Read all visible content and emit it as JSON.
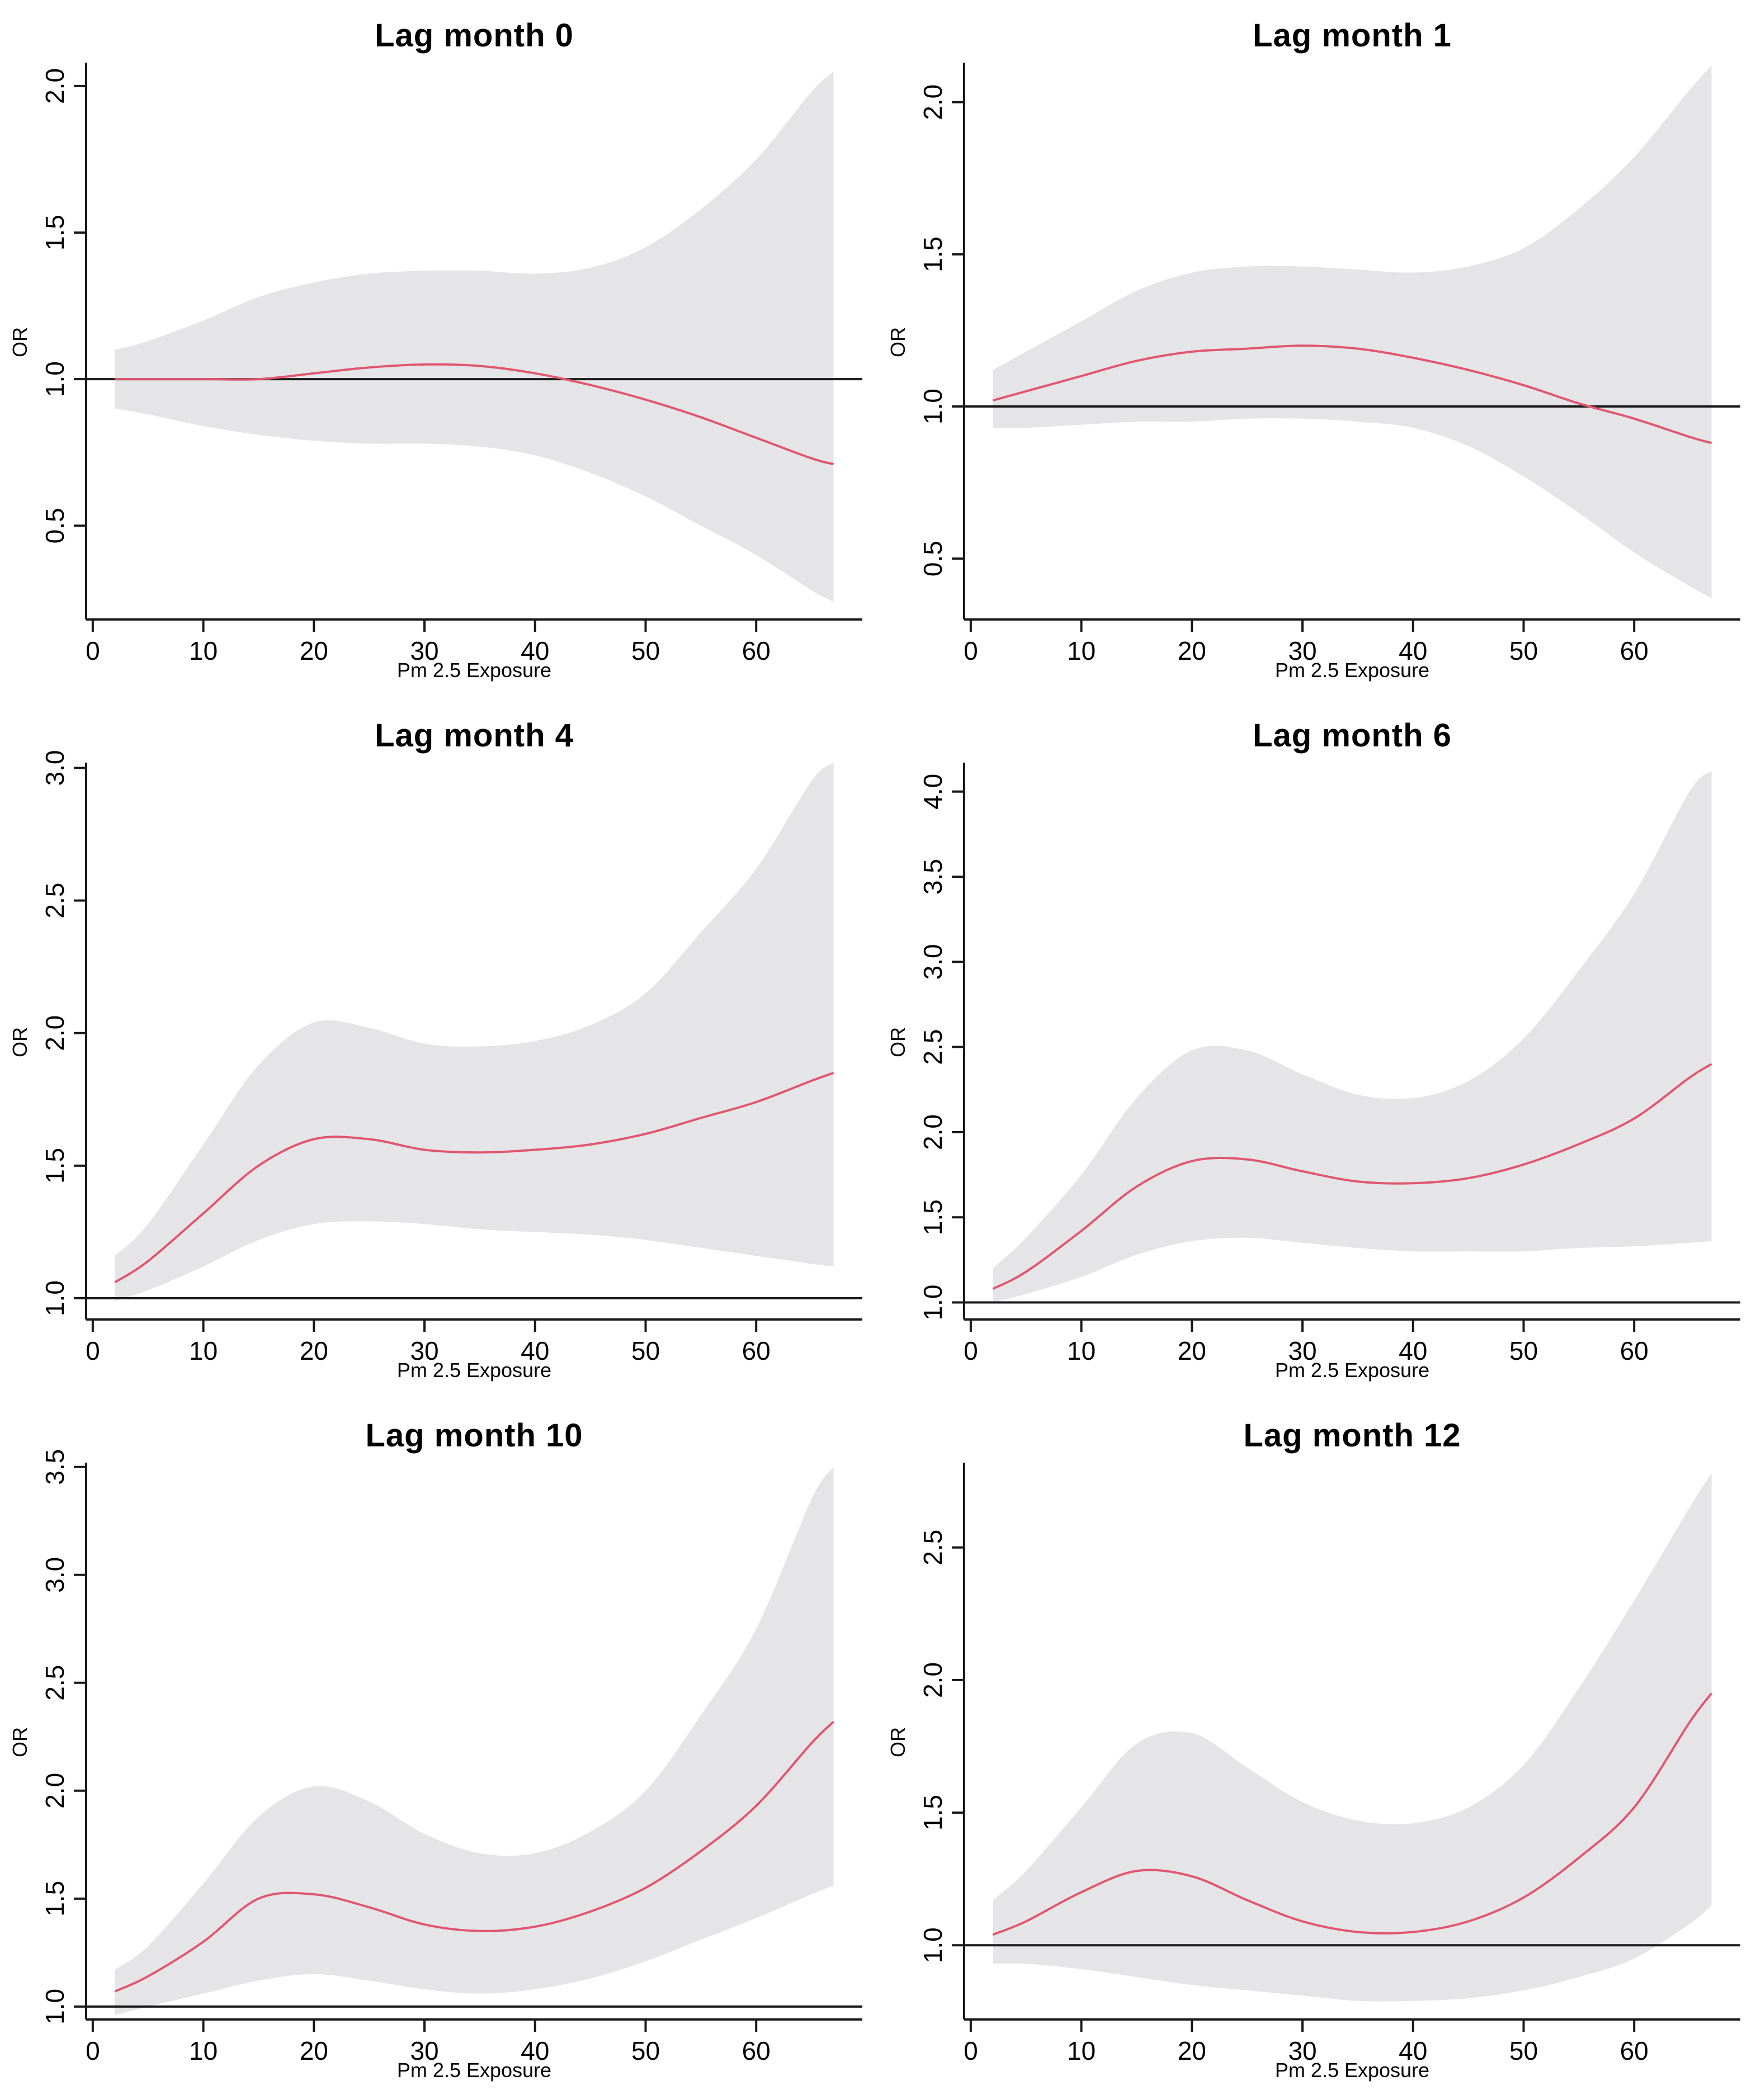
{
  "figure": {
    "xlabel": "Pm 2.5 Exposure",
    "ylabel": "OR",
    "x_ticks": [
      0,
      10,
      20,
      30,
      40,
      50,
      60
    ],
    "xlim": [
      -0.6,
      69.6
    ],
    "reference_line": 1.0
  },
  "colors": {
    "band": "#e5e4e7",
    "line": "#e0566f",
    "axis": "#191919",
    "reference_line": "#191919",
    "background": "#ffffff",
    "text": "#000000"
  },
  "chart_data": [
    {
      "type": "line",
      "title": "Lag month 0",
      "xlabel": "Pm 2.5 Exposure",
      "ylabel": "OR",
      "ylim": [
        0.18,
        2.08
      ],
      "y_ticks": [
        0.5,
        1.0,
        1.5,
        2.0
      ],
      "ref_line": 1.0,
      "x": [
        2,
        5,
        10,
        15,
        20,
        25,
        30,
        35,
        40,
        45,
        50,
        55,
        60,
        65,
        67
      ],
      "fit": [
        1.0,
        1.0,
        1.0,
        1.0,
        1.02,
        1.04,
        1.05,
        1.045,
        1.02,
        0.98,
        0.93,
        0.87,
        0.8,
        0.73,
        0.71
      ],
      "ci_upper": [
        1.1,
        1.13,
        1.2,
        1.28,
        1.33,
        1.36,
        1.37,
        1.37,
        1.36,
        1.38,
        1.45,
        1.58,
        1.75,
        1.98,
        2.05
      ],
      "ci_lower": [
        0.9,
        0.88,
        0.84,
        0.81,
        0.79,
        0.78,
        0.78,
        0.77,
        0.74,
        0.68,
        0.6,
        0.5,
        0.4,
        0.28,
        0.24
      ]
    },
    {
      "type": "line",
      "title": "Lag month 1",
      "xlabel": "Pm 2.5 Exposure",
      "ylabel": "OR",
      "ylim": [
        0.3,
        2.13
      ],
      "y_ticks": [
        0.5,
        1.0,
        1.5,
        2.0
      ],
      "ref_line": 1.0,
      "x": [
        2,
        5,
        10,
        15,
        20,
        25,
        30,
        35,
        40,
        45,
        50,
        55,
        60,
        65,
        67
      ],
      "fit": [
        1.02,
        1.05,
        1.1,
        1.15,
        1.18,
        1.19,
        1.2,
        1.19,
        1.16,
        1.12,
        1.07,
        1.01,
        0.96,
        0.9,
        0.88
      ],
      "ci_upper": [
        1.12,
        1.18,
        1.28,
        1.38,
        1.44,
        1.46,
        1.46,
        1.45,
        1.44,
        1.46,
        1.52,
        1.65,
        1.82,
        2.04,
        2.12
      ],
      "ci_lower": [
        0.93,
        0.93,
        0.94,
        0.95,
        0.95,
        0.96,
        0.96,
        0.95,
        0.93,
        0.87,
        0.77,
        0.65,
        0.52,
        0.41,
        0.37
      ]
    },
    {
      "type": "line",
      "title": "Lag month 4",
      "xlabel": "Pm 2.5 Exposure",
      "ylabel": "OR",
      "ylim": [
        0.92,
        3.02
      ],
      "y_ticks": [
        1.0,
        1.5,
        2.0,
        2.5,
        3.0
      ],
      "ref_line": 1.0,
      "x": [
        2,
        5,
        10,
        15,
        20,
        25,
        30,
        35,
        40,
        45,
        50,
        55,
        60,
        65,
        67
      ],
      "fit": [
        1.06,
        1.14,
        1.32,
        1.5,
        1.6,
        1.6,
        1.56,
        1.55,
        1.56,
        1.58,
        1.62,
        1.68,
        1.74,
        1.82,
        1.85
      ],
      "ci_upper": [
        1.16,
        1.28,
        1.58,
        1.88,
        2.04,
        2.02,
        1.96,
        1.95,
        1.97,
        2.03,
        2.15,
        2.38,
        2.62,
        2.95,
        3.02
      ],
      "ci_lower": [
        0.99,
        1.03,
        1.12,
        1.22,
        1.28,
        1.29,
        1.28,
        1.26,
        1.25,
        1.24,
        1.22,
        1.19,
        1.16,
        1.13,
        1.12
      ]
    },
    {
      "type": "line",
      "title": "Lag month 6",
      "xlabel": "Pm 2.5 Exposure",
      "ylabel": "OR",
      "ylim": [
        0.9,
        4.17
      ],
      "y_ticks": [
        1.0,
        1.5,
        2.0,
        2.5,
        3.0,
        3.5,
        4.0
      ],
      "ref_line": 1.0,
      "x": [
        2,
        5,
        10,
        15,
        20,
        25,
        30,
        35,
        40,
        45,
        50,
        55,
        60,
        65,
        67
      ],
      "fit": [
        1.08,
        1.18,
        1.42,
        1.68,
        1.83,
        1.84,
        1.77,
        1.71,
        1.7,
        1.73,
        1.81,
        1.93,
        2.08,
        2.32,
        2.4
      ],
      "ci_upper": [
        1.2,
        1.38,
        1.75,
        2.2,
        2.48,
        2.48,
        2.34,
        2.22,
        2.2,
        2.3,
        2.55,
        2.95,
        3.4,
        4.0,
        4.12
      ],
      "ci_lower": [
        1.0,
        1.05,
        1.15,
        1.28,
        1.36,
        1.38,
        1.35,
        1.32,
        1.3,
        1.3,
        1.3,
        1.32,
        1.33,
        1.35,
        1.36
      ]
    },
    {
      "type": "line",
      "title": "Lag month 10",
      "xlabel": "Pm 2.5 Exposure",
      "ylabel": "OR",
      "ylim": [
        0.94,
        3.52
      ],
      "y_ticks": [
        1.0,
        1.5,
        2.0,
        2.5,
        3.0,
        3.5
      ],
      "ref_line": 1.0,
      "x": [
        2,
        5,
        10,
        15,
        20,
        25,
        30,
        35,
        40,
        45,
        50,
        55,
        60,
        65,
        67
      ],
      "fit": [
        1.07,
        1.14,
        1.3,
        1.5,
        1.52,
        1.46,
        1.38,
        1.35,
        1.37,
        1.44,
        1.55,
        1.72,
        1.93,
        2.22,
        2.32
      ],
      "ci_upper": [
        1.17,
        1.28,
        1.57,
        1.88,
        2.02,
        1.95,
        1.8,
        1.71,
        1.71,
        1.81,
        2.0,
        2.35,
        2.75,
        3.35,
        3.5
      ],
      "ci_lower": [
        0.96,
        1.0,
        1.06,
        1.12,
        1.15,
        1.12,
        1.08,
        1.06,
        1.08,
        1.13,
        1.21,
        1.31,
        1.41,
        1.52,
        1.56
      ]
    },
    {
      "type": "line",
      "title": "Lag month 12",
      "xlabel": "Pm 2.5 Exposure",
      "ylabel": "OR",
      "ylim": [
        0.72,
        2.82
      ],
      "y_ticks": [
        1.0,
        1.5,
        2.0,
        2.5
      ],
      "ref_line": 1.0,
      "x": [
        2,
        5,
        10,
        15,
        20,
        25,
        30,
        35,
        40,
        45,
        50,
        55,
        60,
        65,
        67
      ],
      "fit": [
        1.04,
        1.09,
        1.2,
        1.28,
        1.26,
        1.17,
        1.09,
        1.05,
        1.05,
        1.09,
        1.18,
        1.33,
        1.52,
        1.84,
        1.95
      ],
      "ci_upper": [
        1.17,
        1.28,
        1.52,
        1.76,
        1.8,
        1.67,
        1.54,
        1.47,
        1.46,
        1.52,
        1.68,
        1.97,
        2.3,
        2.65,
        2.78
      ],
      "ci_lower": [
        0.93,
        0.93,
        0.91,
        0.88,
        0.85,
        0.83,
        0.81,
        0.79,
        0.79,
        0.8,
        0.83,
        0.88,
        0.95,
        1.08,
        1.15
      ]
    }
  ]
}
